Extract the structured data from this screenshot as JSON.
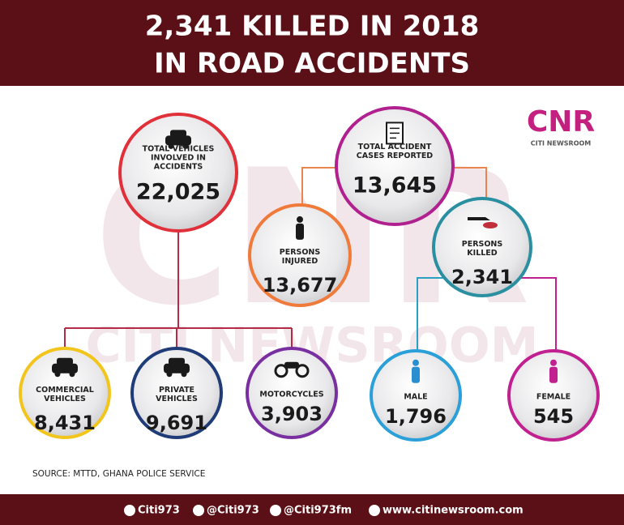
{
  "header": {
    "title": [
      "2,341 KILLED IN 2018",
      "IN ROAD ACCIDENTS"
    ]
  },
  "brand": {
    "logo": "CNR",
    "name": "CITI NEWSROOM"
  },
  "watermark": {
    "logo": "CNR",
    "text": "CITI NEWSROOM"
  },
  "nodes": [
    {
      "label": [
        "TOTAL VEHICLES",
        "INVOLVED IN",
        "ACCIDENTS"
      ],
      "value": "22,025"
    },
    {
      "label": [
        "TOTAL ACCIDENT",
        "CASES REPORTED"
      ],
      "value": "13,645"
    },
    {
      "label": [
        "PERSONS",
        "INJURED"
      ],
      "value": "13,677"
    },
    {
      "label": [
        "PERSONS",
        "KILLED"
      ],
      "value": "2,341"
    },
    {
      "label": [
        "COMMERCIAL",
        "VEHICLES"
      ],
      "value": "8,431"
    },
    {
      "label": [
        "PRIVATE",
        "VEHICLES"
      ],
      "value": "9,691"
    },
    {
      "label": [
        "MOTORCYCLES"
      ],
      "value": "3,903"
    },
    {
      "label": [
        "MALE"
      ],
      "value": "1,796"
    },
    {
      "label": [
        "FEMALE"
      ],
      "value": "545"
    }
  ],
  "source": "SOURCE: MTTD, GHANA POLICE SERVICE",
  "footer": [
    "Citi973",
    "@Citi973",
    "@Citi973fm",
    "www.citinewsroom.com"
  ]
}
